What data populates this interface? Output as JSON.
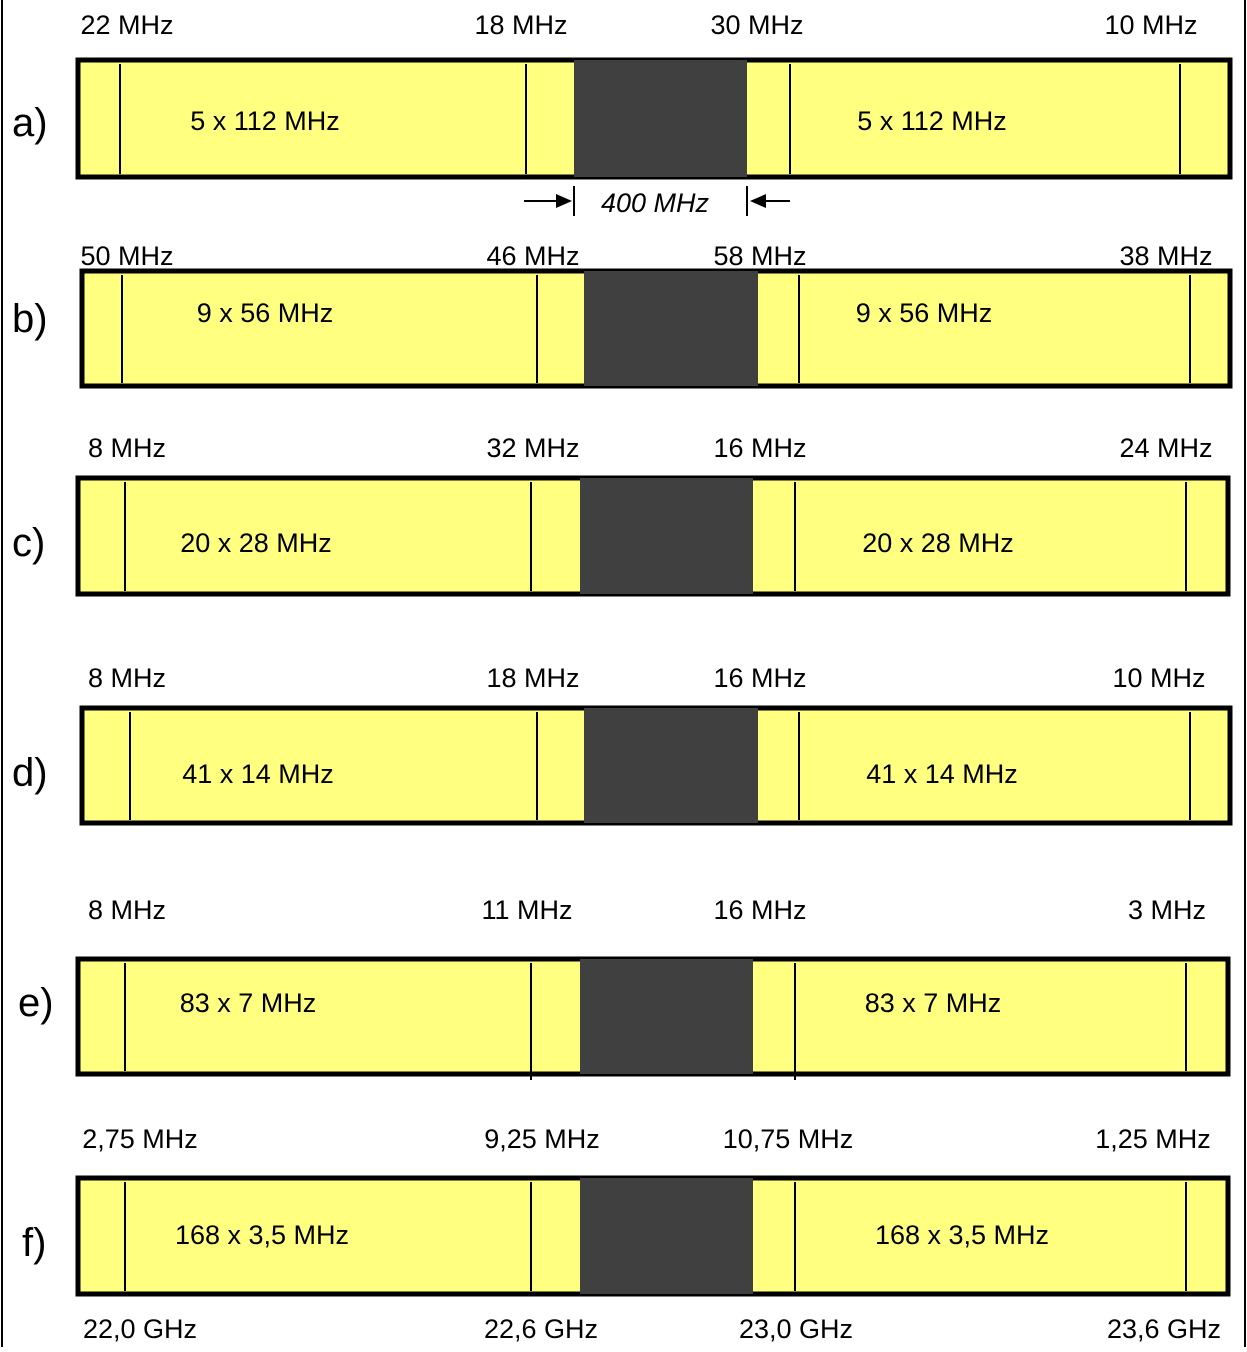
{
  "colors": {
    "band": "#FFFF80",
    "guard": "#404040",
    "outline": "#000000",
    "background": "#FFFFFF"
  },
  "rows": [
    {
      "label": "a)",
      "edge_labels": [
        "22 MHz",
        "18 MHz",
        "30 MHz",
        "10 MHz"
      ],
      "channel_left": "5 x 112 MHz",
      "channel_right": "5 x 112 MHz",
      "gap_label": "400 MHz"
    },
    {
      "label": "b)",
      "edge_labels": [
        "50 MHz",
        "46 MHz",
        "58 MHz",
        "38 MHz"
      ],
      "channel_left": "9 x 56 MHz",
      "channel_right": "9 x 56 MHz"
    },
    {
      "label": "c)",
      "edge_labels": [
        "8 MHz",
        "32 MHz",
        "16 MHz",
        "24 MHz"
      ],
      "channel_left": "20 x 28 MHz",
      "channel_right": "20 x 28 MHz"
    },
    {
      "label": "d)",
      "edge_labels": [
        "8 MHz",
        "18 MHz",
        "16 MHz",
        "10 MHz"
      ],
      "channel_left": "41 x 14 MHz",
      "channel_right": "41 x 14 MHz"
    },
    {
      "label": "e)",
      "edge_labels": [
        "8 MHz",
        "11 MHz",
        "16 MHz",
        "3 MHz"
      ],
      "channel_left": "83 x 7 MHz",
      "channel_right": "83 x 7 MHz"
    },
    {
      "label": "f)",
      "edge_labels": [
        "2,75 MHz",
        "9,25 MHz",
        "10,75 MHz",
        "1,25 MHz"
      ],
      "channel_left": "168 x 3,5 MHz",
      "channel_right": "168 x 3,5 MHz"
    }
  ],
  "frequency_axis": [
    "22,0 GHz",
    "22,6 GHz",
    "23,0 GHz",
    "23,6 GHz"
  ]
}
